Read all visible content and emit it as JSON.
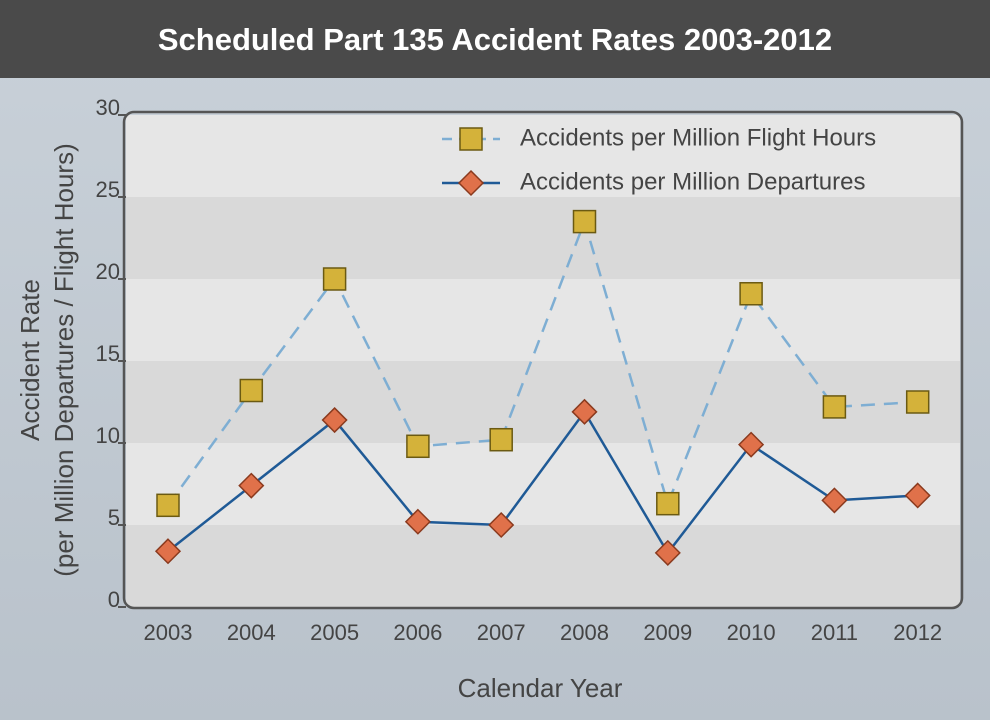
{
  "chart_data": {
    "type": "line",
    "title": "Scheduled Part 135 Accident Rates  2003-2012",
    "xlabel": "Calendar Year",
    "ylabel": [
      "Accident Rate",
      "(per Million Departures / Flight Hours)"
    ],
    "categories": [
      "2003",
      "2004",
      "2005",
      "2006",
      "2007",
      "2008",
      "2009",
      "2010",
      "2011",
      "2012"
    ],
    "series": [
      {
        "name": "Accidents per Million Flight Hours",
        "color": "#7eaed3",
        "marker_color": "#d4b23a",
        "marker": "square",
        "dashed": true,
        "values": [
          6.2,
          13.2,
          20.0,
          9.8,
          10.2,
          23.5,
          6.3,
          19.1,
          12.2,
          12.5
        ]
      },
      {
        "name": "Accidents per Million Departures",
        "color": "#1f5a96",
        "marker_color": "#e0714a",
        "marker": "diamond",
        "dashed": false,
        "values": [
          3.4,
          7.4,
          11.4,
          5.2,
          5.0,
          11.9,
          3.3,
          9.9,
          6.5,
          6.8
        ]
      }
    ],
    "ylim": [
      0,
      30
    ],
    "yticks": [
      0,
      5,
      10,
      15,
      20,
      25,
      30
    ],
    "banded_grid": true
  }
}
